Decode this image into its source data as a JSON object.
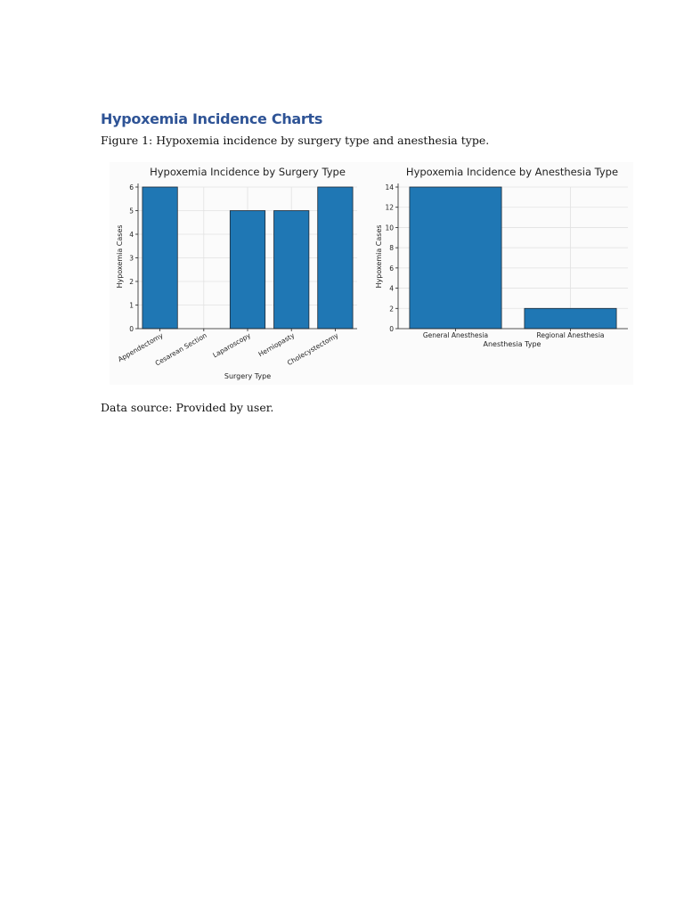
{
  "document": {
    "heading": "Hypoxemia Incidence Charts",
    "caption": "Figure 1: Hypoxemia incidence by surgery type and anesthesia type.",
    "source": "Data source: Provided by user."
  },
  "colors": {
    "heading": "#2f5496",
    "bar": "#1f77b4"
  },
  "chart_data": [
    {
      "type": "bar",
      "title": "Hypoxemia Incidence by Surgery Type",
      "xlabel": "Surgery Type",
      "ylabel": "Hypoxemia Cases",
      "categories": [
        "Appendectomy",
        "Cesarean Section",
        "Laparoscopy",
        "Herniopasty",
        "Cholecystectomy"
      ],
      "values": [
        6,
        0,
        5,
        5,
        6
      ],
      "ylim": [
        0,
        6
      ],
      "yticks": [
        "0",
        "1",
        "2",
        "3",
        "4",
        "5",
        "6"
      ],
      "grid": true,
      "legend": "none"
    },
    {
      "type": "bar",
      "title": "Hypoxemia Incidence by Anesthesia Type",
      "xlabel": "Anesthesia Type",
      "ylabel": "Hypoxemia Cases",
      "categories": [
        "General Anesthesia",
        "Regional Anesthesia"
      ],
      "values": [
        14,
        2
      ],
      "ylim": [
        0,
        14
      ],
      "yticks": [
        "0",
        "2",
        "4",
        "6",
        "8",
        "10",
        "12",
        "14"
      ],
      "grid": true,
      "legend": "none"
    }
  ]
}
